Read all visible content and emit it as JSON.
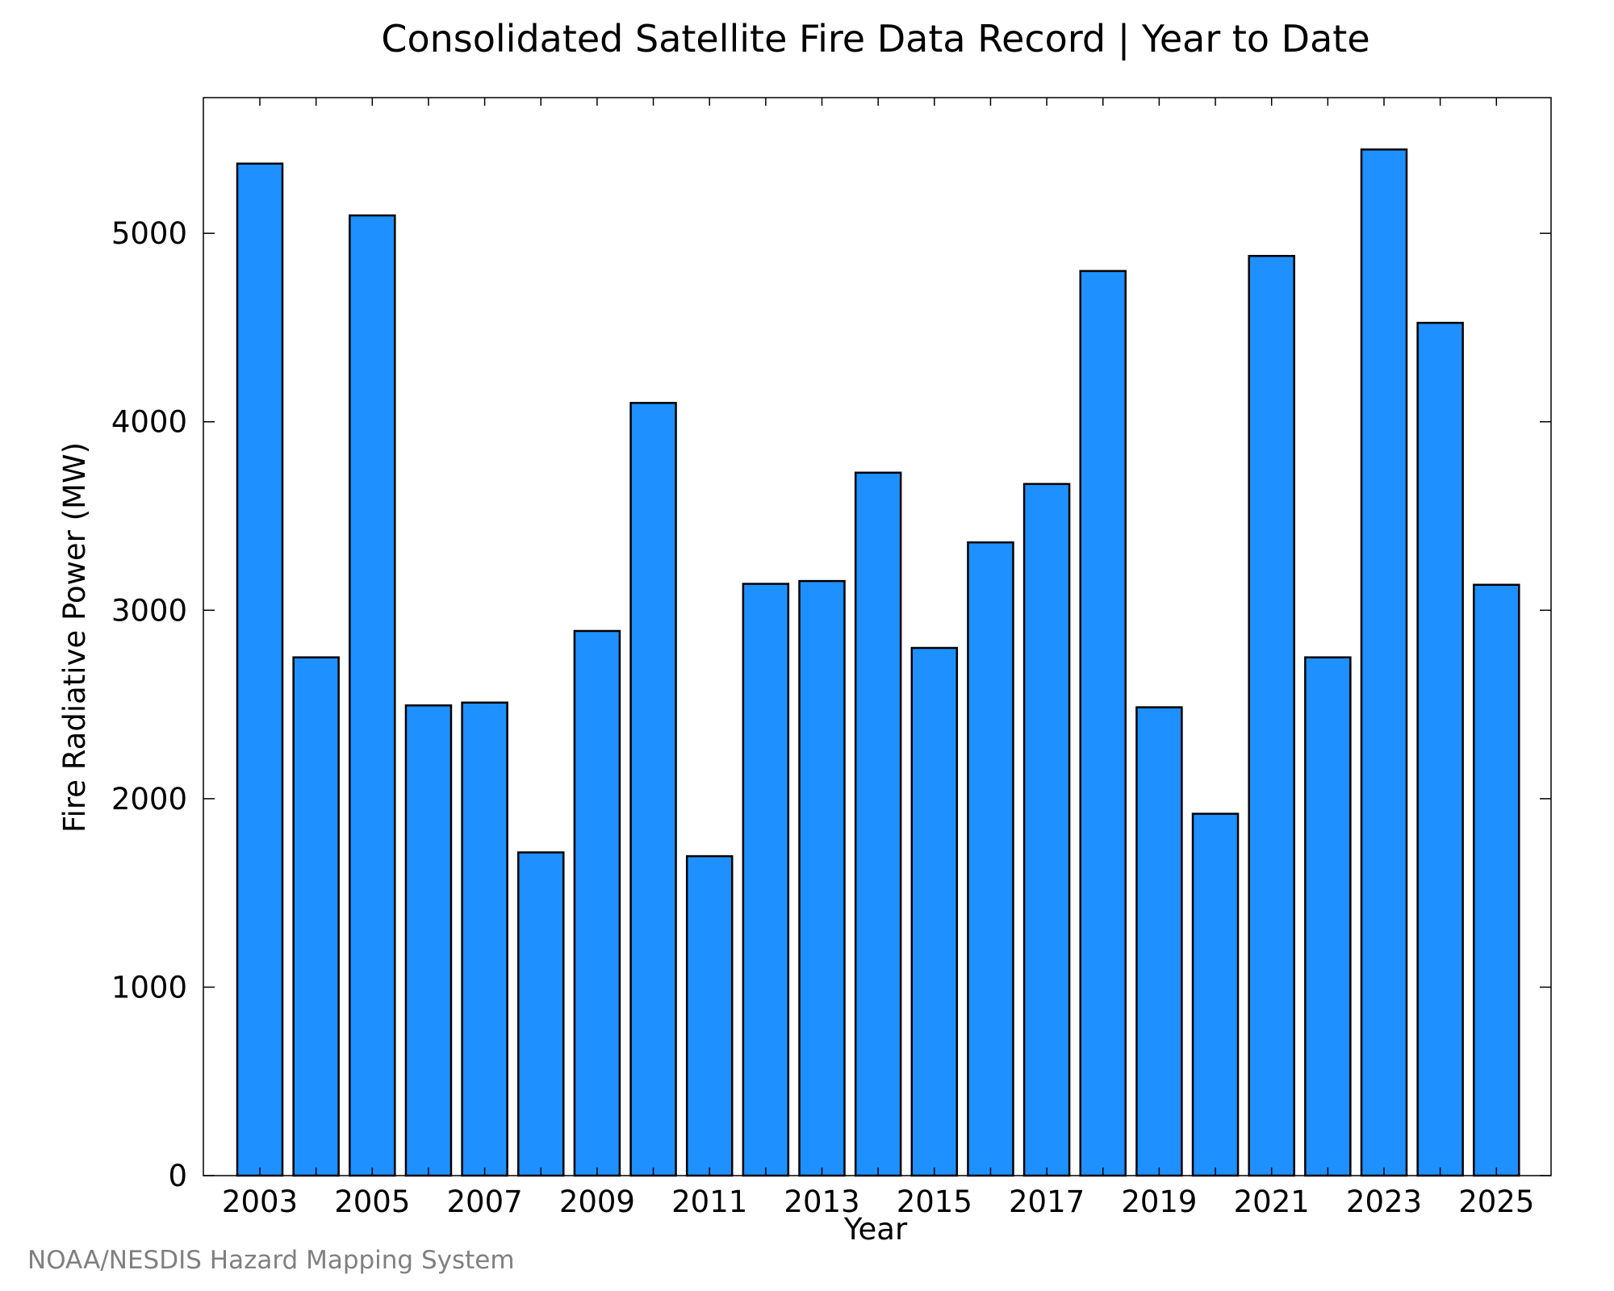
{
  "chart_data": {
    "type": "bar",
    "title": "Consolidated Satellite Fire Data Record | Year to Date",
    "xlabel": "Year",
    "ylabel": "Fire Radiative Power (MW)",
    "categories": [
      "2003",
      "2004",
      "2005",
      "2006",
      "2007",
      "2008",
      "2009",
      "2010",
      "2011",
      "2012",
      "2013",
      "2014",
      "2015",
      "2016",
      "2017",
      "2018",
      "2019",
      "2020",
      "2021",
      "2022",
      "2023",
      "2024",
      "2025"
    ],
    "values": [
      5370,
      2750,
      5095,
      2495,
      2510,
      1715,
      2890,
      4100,
      1695,
      3140,
      3155,
      3730,
      2800,
      3360,
      3670,
      4800,
      2485,
      1920,
      4880,
      2750,
      5445,
      4525,
      3135
    ],
    "x_tick_labels": [
      "2003",
      "2005",
      "2007",
      "2009",
      "2011",
      "2013",
      "2015",
      "2017",
      "2019",
      "2021",
      "2023",
      "2025"
    ],
    "y_ticks": [
      0,
      1000,
      2000,
      3000,
      4000,
      5000
    ],
    "ylim": [
      0,
      5720
    ],
    "grid": false,
    "bar_color": "#1e90ff",
    "bar_edge_color": "#000000",
    "credit": "NOAA/NESDIS Hazard Mapping System"
  }
}
